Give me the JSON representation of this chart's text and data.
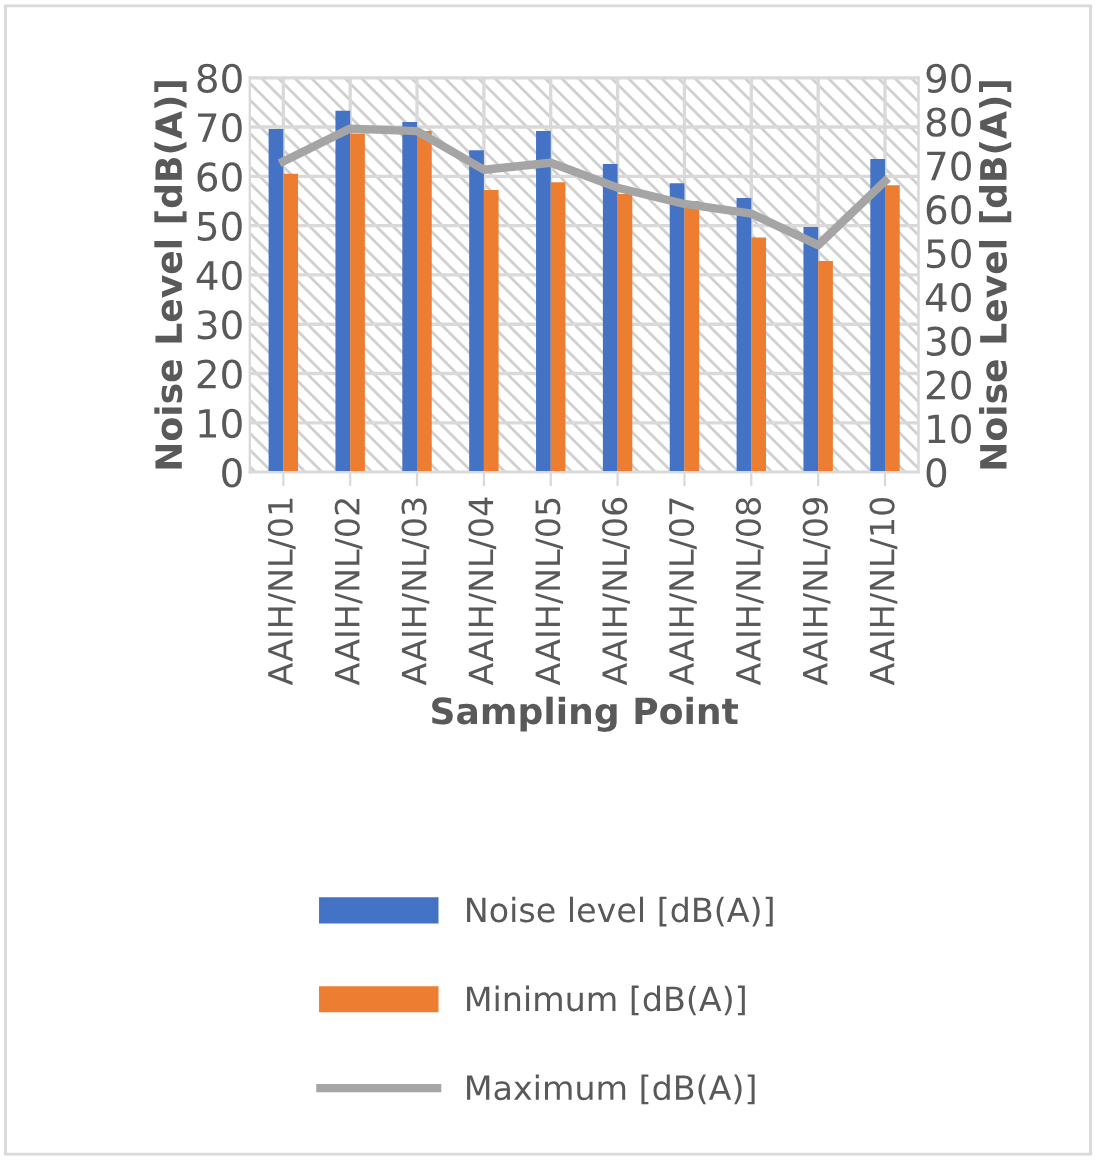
{
  "chart_data": {
    "type": "bar",
    "xlabel": "Sampling Point",
    "ylabel": "Noise Level [dB(A)]",
    "y2label": "Noise Level [dB(A)]",
    "categories": [
      "AAIH/NL/01",
      "AAIH/NL/02",
      "AAIH/NL/03",
      "AAIH/NL/04",
      "AAIH/NL/05",
      "AAIH/NL/06",
      "AAIH/NL/07",
      "AAIH/NL/08",
      "AAIH/NL/09",
      "AAIH/NL/10"
    ],
    "series": [
      {
        "name": "Noise level [dB(A)]",
        "color": "#4472c4",
        "values": [
          69.6,
          73.3,
          71,
          65.3,
          69.2,
          62.5,
          58.6,
          55.6,
          49.7,
          63.5
        ]
      },
      {
        "name": "Minimum [dB(A)]",
        "color": "#ed7d31",
        "values": [
          60.5,
          68.7,
          69.2,
          57.2,
          58.8,
          56.4,
          55,
          47.6,
          42.8,
          58.2
        ]
      },
      {
        "name": "Maximum [dB(A)]",
        "color": "#a5a5a5",
        "type": "line",
        "axis": "y2",
        "values": [
          70.9,
          78.4,
          77.8,
          69,
          70.6,
          64.9,
          61.2,
          59,
          51.8,
          66.4
        ]
      }
    ],
    "ylim": [
      0,
      80
    ],
    "yticks": [
      0,
      10,
      20,
      30,
      40,
      50,
      60,
      70,
      80
    ],
    "y2lim": [
      0,
      90
    ],
    "y2ticks": [
      0,
      10,
      20,
      30,
      40,
      50,
      60,
      70,
      80,
      90
    ],
    "grid": true,
    "legend": "bottom"
  }
}
